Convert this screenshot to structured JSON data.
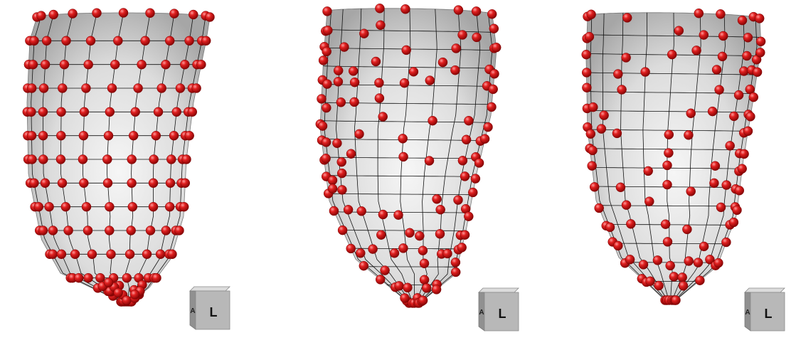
{
  "panels": [
    {
      "name": "mesh-panel-1",
      "orientation_label": "L",
      "side_glyph": "A"
    },
    {
      "name": "mesh-panel-2",
      "orientation_label": "L",
      "side_glyph": "A"
    },
    {
      "name": "mesh-panel-3",
      "orientation_label": "L",
      "side_glyph": "A"
    }
  ],
  "colors": {
    "background": "#ffffff",
    "surface_light": "#f4f4f4",
    "surface_mid": "#d6d6d6",
    "surface_dark": "#9a9a9a",
    "grid_line": "#111111",
    "marker_red": "#e02020",
    "marker_dark": "#7a0000",
    "cube_front": "#b8b8b8",
    "cube_top": "#dcdcdc",
    "cube_side": "#909090"
  }
}
